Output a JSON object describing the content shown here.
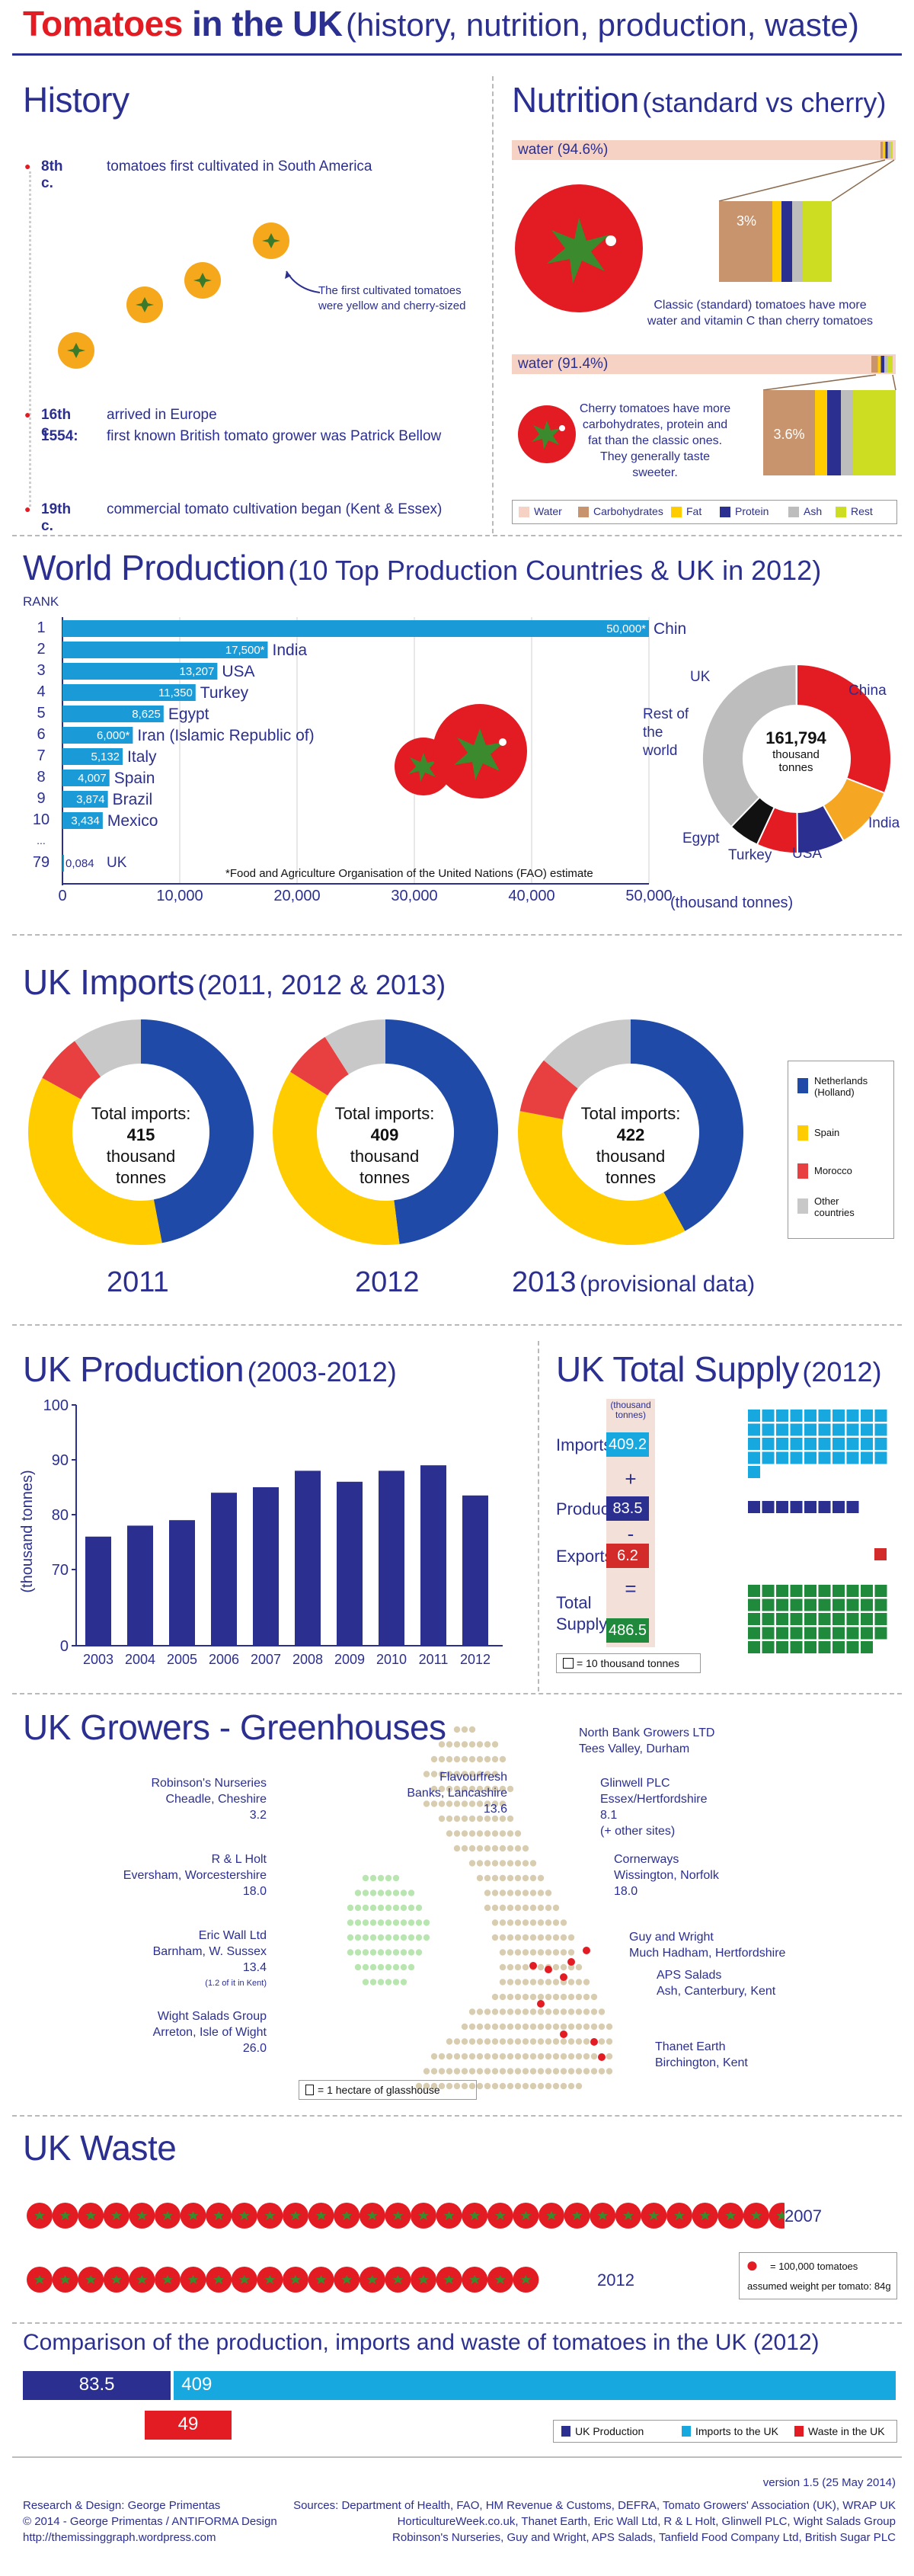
{
  "header": {
    "title_red": "Tomatoes",
    "title_rest": " in the UK",
    "subtitle": "(history, nutrition, production, waste)"
  },
  "history": {
    "title": "History",
    "items": [
      {
        "date": "8th c.",
        "text": "tomatoes first cultivated in South America"
      },
      {
        "date": "16th c.",
        "text": "arrived in Europe"
      },
      {
        "date": "1554:",
        "text": "first known British tomato grower was Patrick Bellow"
      },
      {
        "date": "19th c.",
        "text": "commercial tomato cultivation began (Kent & Essex)"
      }
    ],
    "note": [
      "The first cultivated tomatoes",
      "were yellow and cherry-sized"
    ]
  },
  "nutrition": {
    "title": "Nutrition",
    "subtitle": "(standard vs cherry)",
    "standard": {
      "water_label": "water (94.6%)",
      "water": 94.6,
      "other_label": "3%",
      "note": [
        "Classic (standard) tomatoes have more",
        "water and vitamin C than cherry tomatoes"
      ]
    },
    "cherry": {
      "water_label": "water (91.4%)",
      "water": 91.4,
      "other_label": "3.6%",
      "note": [
        "Cherry tomatoes have more",
        "carbohydrates, protein and",
        "fat than the classic ones.",
        "They generally taste sweeter."
      ]
    },
    "legend": [
      "Water",
      "Carbohydrates",
      "Fat",
      "Protein",
      "Ash",
      "Rest"
    ],
    "colors": {
      "water": "#f6d2c4",
      "carbohydrates": "#c8946e",
      "fat": "#ffcc00",
      "protein": "#2b2f8f",
      "ash": "#bdbdbd",
      "rest": "#ccdd22"
    }
  },
  "world": {
    "title": "World Production",
    "subtitle": "(10 Top Production Countries & UK in 2012)",
    "rank_label": "RANK",
    "unit": "(thousand tonnes)",
    "footnote": "*Food and Agriculture Organisation of the United Nations (FAO) estimate",
    "donut_total": "161,794",
    "donut_unit": [
      "thousand",
      "tonnes"
    ],
    "donut_labels": [
      "China",
      "India",
      "USA",
      "Turkey",
      "Egypt",
      "Rest of the world",
      "UK"
    ]
  },
  "chart_data": [
    {
      "type": "bar",
      "title": "World Production (10 Top Production Countries & UK in 2012)",
      "xlabel": "(thousand tonnes)",
      "xlim": [
        0,
        50000
      ],
      "ticks": [
        "0",
        "10,000",
        "20,000",
        "30,000",
        "40,000",
        "50,000"
      ],
      "rows": [
        {
          "rank": "1",
          "country": "China",
          "value": 50000,
          "label": "50,000*"
        },
        {
          "rank": "2",
          "country": "India",
          "value": 17500,
          "label": "17,500*"
        },
        {
          "rank": "3",
          "country": "USA",
          "value": 13207,
          "label": "13,207"
        },
        {
          "rank": "4",
          "country": "Turkey",
          "value": 11350,
          "label": "11,350"
        },
        {
          "rank": "5",
          "country": "Egypt",
          "value": 8625,
          "label": "8,625"
        },
        {
          "rank": "6",
          "country": "Iran (Islamic Republic of)",
          "value": 6000,
          "label": "6,000*"
        },
        {
          "rank": "7",
          "country": "Italy",
          "value": 5132,
          "label": "5,132"
        },
        {
          "rank": "8",
          "country": "Spain",
          "value": 4007,
          "label": "4,007"
        },
        {
          "rank": "9",
          "country": "Brazil",
          "value": 3874,
          "label": "3,874"
        },
        {
          "rank": "10",
          "country": "Mexico",
          "value": 3434,
          "label": "3,434"
        },
        {
          "rank": "79",
          "country": "UK",
          "value": 84,
          "label": "0,084"
        }
      ]
    },
    {
      "type": "pie",
      "title": "161,794 thousand tonnes",
      "categories": [
        "China",
        "India",
        "USA",
        "Turkey",
        "Egypt",
        "Rest of the world",
        "UK"
      ],
      "values": [
        50000,
        17500,
        13207,
        11350,
        8625,
        61028,
        84
      ],
      "colors": [
        "#e31b23",
        "#f5a623",
        "#2b2f8f",
        "#e31b23",
        "#111111",
        "#bdbdbd",
        "#bdbdbd"
      ]
    },
    {
      "type": "pie",
      "title": "UK Imports (2011, 2012 & 2013)",
      "categories": [
        "Netherlands (Holland)",
        "Spain",
        "Morocco",
        "Other countries"
      ],
      "series": [
        {
          "name": "2011",
          "total": "415",
          "values": [
            47,
            36,
            7,
            10
          ]
        },
        {
          "name": "2012",
          "total": "409",
          "values": [
            48,
            36,
            7,
            9
          ]
        },
        {
          "name": "2013",
          "total": "422",
          "values": [
            42,
            36,
            8,
            14
          ]
        }
      ],
      "colors": [
        "#1f4aa8",
        "#ffcc00",
        "#e84040",
        "#c8c8c8"
      ]
    },
    {
      "type": "bar",
      "title": "UK Production (2003-2012)",
      "ylabel": "(thousand tonnes)",
      "ylim": [
        0,
        100
      ],
      "yticks": [
        "0",
        "70",
        "80",
        "90",
        "100"
      ],
      "categories": [
        "2003",
        "2004",
        "2005",
        "2006",
        "2007",
        "2008",
        "2009",
        "2010",
        "2011",
        "2012"
      ],
      "values": [
        76,
        78,
        79,
        84,
        85,
        88,
        86,
        88,
        89,
        83.5
      ]
    }
  ],
  "imports": {
    "title": "UK Imports",
    "subtitle": "(2011, 2012 & 2013)",
    "center_label": "Total imports:",
    "center_unit": [
      "thousand",
      "tonnes"
    ],
    "years": [
      "2011",
      "2012",
      "2013"
    ],
    "year3_note": "(provisional data)",
    "legend": [
      "Netherlands (Holland)",
      "Spain",
      "Morocco",
      "Other countries"
    ]
  },
  "production": {
    "title": "UK Production",
    "subtitle": "(2003-2012)"
  },
  "supply": {
    "title": "UK Total Supply",
    "subtitle": "(2012)",
    "unit": [
      "(thousand",
      "tonnes)"
    ],
    "rows": [
      {
        "label": "Imports:",
        "value": "409.2",
        "op": "+"
      },
      {
        "label": "Production:",
        "value": "83.5",
        "op": "-"
      },
      {
        "label": "Exports:",
        "value": "6.2",
        "op": "="
      },
      {
        "label": "Total Supply:",
        "value": "486.5",
        "op": ""
      }
    ],
    "legend": "= 10 thousand tonnes",
    "squares": {
      "imports": 41,
      "production": 8,
      "exports": 1,
      "total": 49
    }
  },
  "growers": {
    "title": "UK Growers - Greenhouses",
    "left": [
      {
        "name": "Robinson's Nurseries",
        "place": "Cheadle, Cheshire",
        "value": "3.2"
      },
      {
        "name": "Flavourfresh",
        "place": "Banks, Lancashire",
        "value": "13.6"
      },
      {
        "name": "R & L Holt",
        "place": "Eversham, Worcestershire",
        "value": "18.0"
      },
      {
        "name": "Eric Wall Ltd",
        "place": "Barnham, W. Sussex",
        "value": "13.4",
        "note": "(1.2 of it in Kent)"
      },
      {
        "name": "Wight Salads Group",
        "place": "Arreton, Isle of Wight",
        "value": "26.0"
      }
    ],
    "right": [
      {
        "name": "North Bank Growers LTD",
        "place": "Tees Valley, Durham"
      },
      {
        "name": "Glinwell PLC",
        "place": "Essex/Hertfordshire",
        "value": "8.1",
        "note": "(+ other sites)"
      },
      {
        "name": "Cornerways",
        "place": "Wissington, Norfolk",
        "value": "18.0"
      },
      {
        "name": "Guy and Wright",
        "place": "Much Hadham, Hertfordshire"
      },
      {
        "name": "APS Salads",
        "place": "Ash, Canterbury, Kent"
      },
      {
        "name": "Thanet Earth",
        "place": "Birchington, Kent"
      }
    ],
    "legend": "= 1 hectare of glasshouse"
  },
  "waste": {
    "title": "UK Waste",
    "rows": [
      {
        "year": "2007",
        "count": 30
      },
      {
        "year": "2012",
        "count": 20
      }
    ],
    "legend": "= 100,000 tomatoes",
    "legend2": "assumed weight per tomato: 84g"
  },
  "comparison": {
    "title": "Comparison of the production, imports and waste of tomatoes in the UK (2012)",
    "production": 83.5,
    "imports": 409,
    "waste": 49,
    "production_label": "83.5",
    "imports_label": "409",
    "waste_label": "49",
    "legend": [
      "UK Production",
      "Imports to the UK",
      "Waste in the UK"
    ]
  },
  "footer": {
    "left": [
      "Research & Design: George Primentas",
      "© 2014 - George Primentas / ANTIFORMA Design",
      "http://themissinggraph.wordpress.com"
    ],
    "version": "version 1.5 (25 May 2014)",
    "sources": [
      "Sources: Department of Health, FAO, HM Revenue & Customs, DEFRA, Tomato Growers' Association (UK), WRAP UK",
      "HorticultureWeek.co.uk, Thanet Earth, Eric Wall Ltd, R & L Holt, Glinwell PLC, Wight Salads Group",
      "Robinson's Nurseries, Guy and Wright, APS Salads, Tanfield Food Company Ltd, British Sugar PLC"
    ]
  }
}
